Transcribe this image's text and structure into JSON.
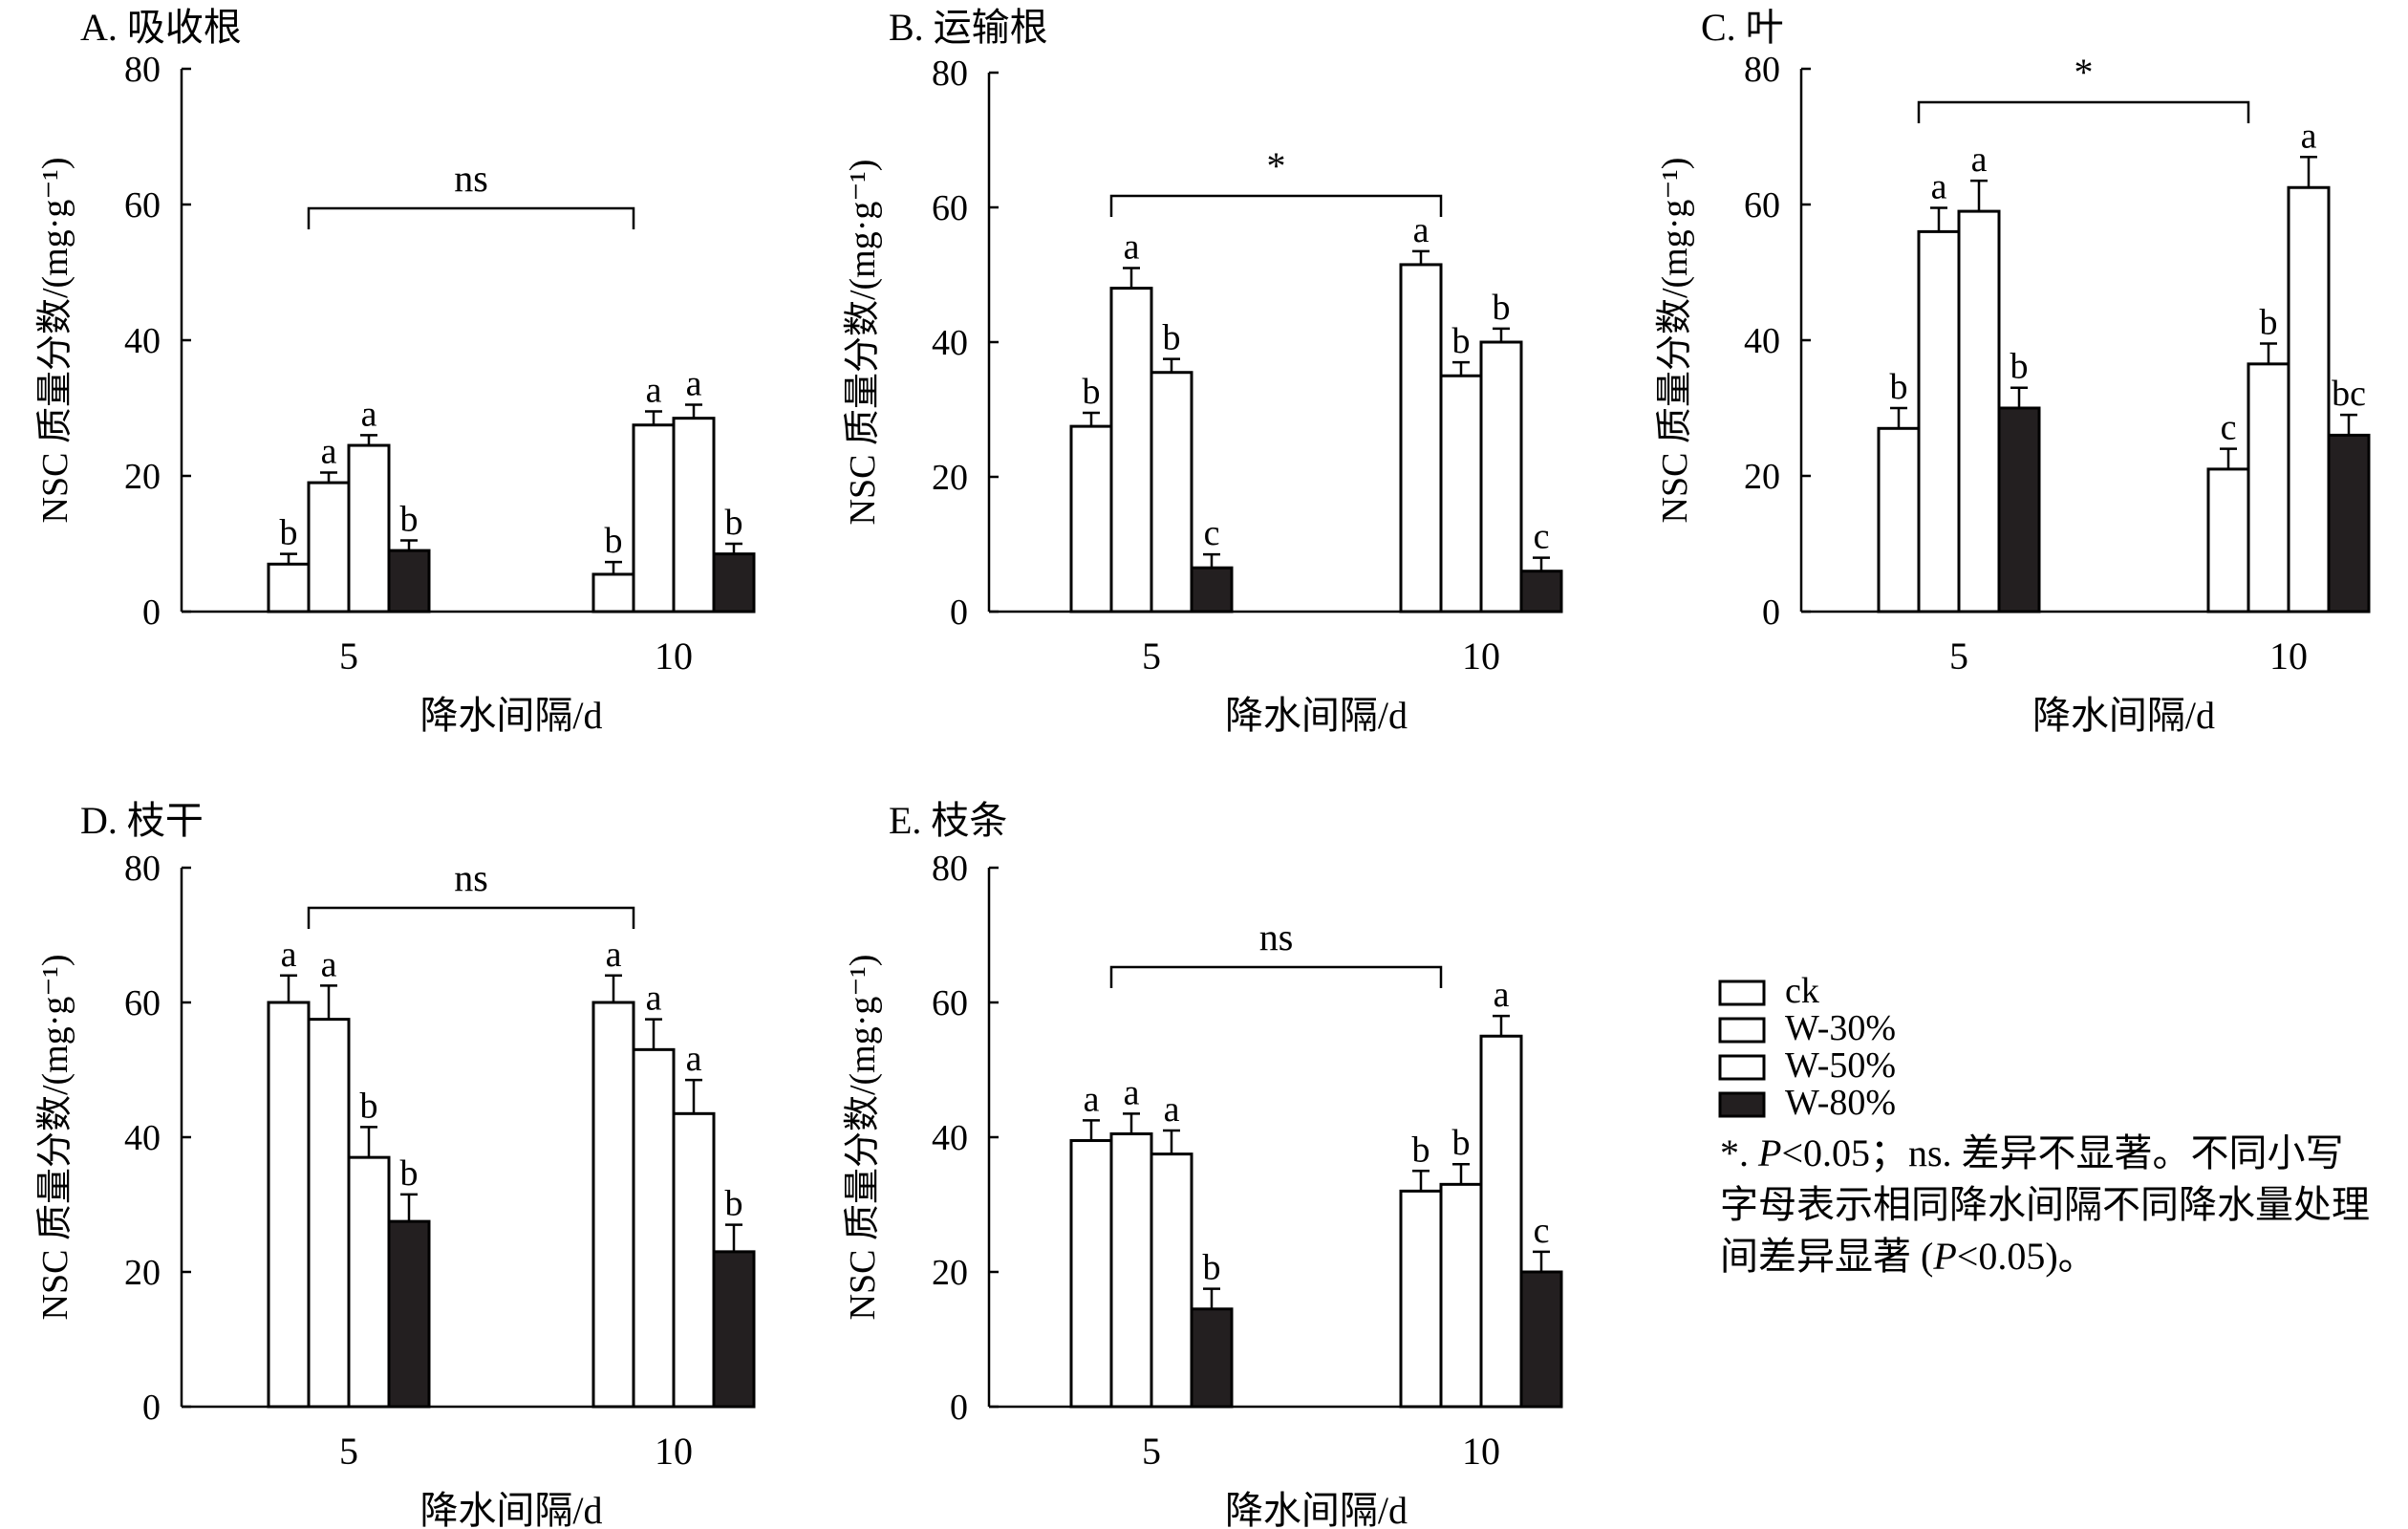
{
  "legend": [
    {
      "label": "ck",
      "fill": "#ffffff"
    },
    {
      "label": "W-30%",
      "fill": "#ffffff"
    },
    {
      "label": "W-50%",
      "fill": "#ffffff"
    },
    {
      "label": "W-80%",
      "fill": "#231f20"
    }
  ],
  "note": {
    "star": "*. ",
    "p1": "P",
    "sig_text": "<0.05；ns. 差异不显著。不同小写字母表示相同降水间隔不同降水量处理间差异显著 (",
    "p2": "P",
    "tail": "<0.05)。"
  },
  "chart_data": [
    {
      "type": "bar",
      "title": "A. 吸收根",
      "xlabel": "降水间隔/d",
      "ylabel": "NSC 质量分数/(mg·g⁻¹)",
      "ylim": [
        0,
        80
      ],
      "yticks": [
        0,
        20,
        40,
        60,
        80
      ],
      "categories": [
        "5",
        "10"
      ],
      "series": [
        {
          "name": "ck",
          "values": [
            7,
            5.5
          ],
          "errors": [
            1.5,
            1.8
          ],
          "letters": [
            "b",
            "b"
          ]
        },
        {
          "name": "W-30%",
          "values": [
            19,
            27.5
          ],
          "errors": [
            1.5,
            2
          ],
          "letters": [
            "a",
            "a"
          ]
        },
        {
          "name": "W-50%",
          "values": [
            24.5,
            28.5
          ],
          "errors": [
            1.5,
            2
          ],
          "letters": [
            "a",
            "a"
          ]
        },
        {
          "name": "W-80%",
          "values": [
            9,
            8.5
          ],
          "errors": [
            1.5,
            1.5
          ],
          "letters": [
            "b",
            "b"
          ]
        }
      ],
      "comparison": "ns"
    },
    {
      "type": "bar",
      "title": "B. 运输根",
      "xlabel": "降水间隔/d",
      "ylabel": "NSC 质量分数/(mg·g⁻¹)",
      "ylim": [
        0,
        80
      ],
      "yticks": [
        0,
        20,
        40,
        60,
        80
      ],
      "categories": [
        "5",
        "10"
      ],
      "series": [
        {
          "name": "ck",
          "values": [
            27.5,
            51.5
          ],
          "errors": [
            2,
            2
          ],
          "letters": [
            "b",
            "a"
          ]
        },
        {
          "name": "W-30%",
          "values": [
            48,
            35
          ],
          "errors": [
            3,
            2
          ],
          "letters": [
            "a",
            "b"
          ]
        },
        {
          "name": "W-50%",
          "values": [
            35.5,
            40
          ],
          "errors": [
            2,
            2
          ],
          "letters": [
            "b",
            "b"
          ]
        },
        {
          "name": "W-80%",
          "values": [
            6.5,
            6
          ],
          "errors": [
            2,
            2
          ],
          "letters": [
            "c",
            "c"
          ]
        }
      ],
      "comparison": "*"
    },
    {
      "type": "bar",
      "title": "C. 叶",
      "xlabel": "降水间隔/d",
      "ylabel": "NSC 质量分数/(mg·g⁻¹)",
      "ylim": [
        0,
        80
      ],
      "yticks": [
        0,
        20,
        40,
        60,
        80
      ],
      "categories": [
        "5",
        "10"
      ],
      "series": [
        {
          "name": "ck",
          "values": [
            27,
            21
          ],
          "errors": [
            3,
            3
          ],
          "letters": [
            "b",
            "c"
          ]
        },
        {
          "name": "W-30%",
          "values": [
            56,
            36.5
          ],
          "errors": [
            3.5,
            3
          ],
          "letters": [
            "a",
            "b"
          ]
        },
        {
          "name": "W-50%",
          "values": [
            59,
            62.5
          ],
          "errors": [
            4.5,
            4.5
          ],
          "letters": [
            "a",
            "a"
          ]
        },
        {
          "name": "W-80%",
          "values": [
            30,
            26
          ],
          "errors": [
            3,
            3
          ],
          "letters": [
            "b",
            "bc"
          ]
        }
      ],
      "comparison": "*"
    },
    {
      "type": "bar",
      "title": "D. 枝干",
      "xlabel": "降水间隔/d",
      "ylabel": "NSC 质量分数/(mg·g⁻¹)",
      "ylim": [
        0,
        80
      ],
      "yticks": [
        0,
        20,
        40,
        60,
        80
      ],
      "categories": [
        "5",
        "10"
      ],
      "series": [
        {
          "name": "ck",
          "values": [
            60,
            60
          ],
          "errors": [
            4,
            4
          ],
          "letters": [
            "a",
            "a"
          ]
        },
        {
          "name": "W-30%",
          "values": [
            57.5,
            53
          ],
          "errors": [
            5,
            4.5
          ],
          "letters": [
            "a",
            "a"
          ]
        },
        {
          "name": "W-50%",
          "values": [
            37,
            43.5
          ],
          "errors": [
            4.5,
            5
          ],
          "letters": [
            "b",
            "a"
          ]
        },
        {
          "name": "W-80%",
          "values": [
            27.5,
            23
          ],
          "errors": [
            4,
            4
          ],
          "letters": [
            "b",
            "b"
          ]
        }
      ],
      "comparison": "ns"
    },
    {
      "type": "bar",
      "title": "E. 枝条",
      "xlabel": "降水间隔/d",
      "ylabel": "NSC 质量分数/(mg·g⁻¹)",
      "ylim": [
        0,
        80
      ],
      "yticks": [
        0,
        20,
        40,
        60,
        80
      ],
      "categories": [
        "5",
        "10"
      ],
      "series": [
        {
          "name": "ck",
          "values": [
            39.5,
            32
          ],
          "errors": [
            3,
            3
          ],
          "letters": [
            "a",
            "b"
          ]
        },
        {
          "name": "W-30%",
          "values": [
            40.5,
            33
          ],
          "errors": [
            3,
            3
          ],
          "letters": [
            "a",
            "b"
          ]
        },
        {
          "name": "W-50%",
          "values": [
            37.5,
            55
          ],
          "errors": [
            3.5,
            3
          ],
          "letters": [
            "a",
            "a"
          ]
        },
        {
          "name": "W-80%",
          "values": [
            14.5,
            20
          ],
          "errors": [
            3,
            3
          ],
          "letters": [
            "b",
            "c"
          ]
        }
      ],
      "comparison": "ns"
    }
  ]
}
